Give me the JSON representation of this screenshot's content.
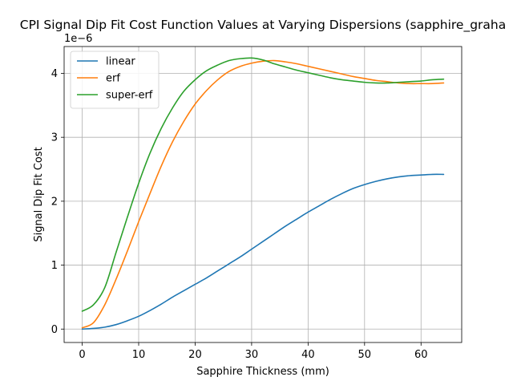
{
  "chart_data": {
    "type": "line",
    "title": "CPI Signal Dip Fit Cost Function Values at Varying Dispersions (sapphire_graha",
    "xlabel": "Sapphire Thickness (mm)",
    "ylabel": "Signal Dip Fit Cost",
    "y_offset_label": "1e−6",
    "y_scale": 1e-06,
    "xlim": [
      -3.2,
      67.2
    ],
    "ylim": [
      -0.21,
      4.42
    ],
    "grid": true,
    "legend_position": "top-left",
    "x_ticks": [
      0,
      10,
      20,
      30,
      40,
      50,
      60
    ],
    "x_tick_labels": [
      "0",
      "10",
      "20",
      "30",
      "40",
      "50",
      "60"
    ],
    "y_ticks": [
      0,
      1,
      2,
      3,
      4
    ],
    "y_tick_labels": [
      "0",
      "1",
      "2",
      "3",
      "4"
    ],
    "series": [
      {
        "name": "linear",
        "color": "#1f77b4",
        "x": [
          0,
          2,
          4,
          6,
          8,
          10,
          12,
          14,
          16,
          18,
          20,
          22,
          24,
          26,
          28,
          30,
          32,
          34,
          36,
          38,
          40,
          42,
          44,
          46,
          48,
          50,
          52,
          54,
          56,
          58,
          60,
          62,
          64
        ],
        "y": [
          0.0,
          0.01,
          0.03,
          0.07,
          0.13,
          0.2,
          0.29,
          0.39,
          0.5,
          0.6,
          0.7,
          0.8,
          0.91,
          1.02,
          1.13,
          1.25,
          1.37,
          1.49,
          1.61,
          1.72,
          1.83,
          1.93,
          2.03,
          2.12,
          2.2,
          2.26,
          2.31,
          2.35,
          2.38,
          2.4,
          2.41,
          2.42,
          2.42
        ]
      },
      {
        "name": "erf",
        "color": "#ff7f0e",
        "x": [
          0,
          2,
          4,
          6,
          8,
          10,
          12,
          14,
          16,
          18,
          20,
          22,
          24,
          26,
          28,
          30,
          32,
          34,
          36,
          38,
          40,
          42,
          44,
          46,
          48,
          50,
          52,
          54,
          56,
          58,
          60,
          62,
          64
        ],
        "y": [
          0.02,
          0.1,
          0.38,
          0.78,
          1.22,
          1.68,
          2.12,
          2.55,
          2.93,
          3.25,
          3.52,
          3.73,
          3.9,
          4.03,
          4.11,
          4.16,
          4.19,
          4.2,
          4.18,
          4.15,
          4.11,
          4.07,
          4.03,
          3.99,
          3.95,
          3.92,
          3.89,
          3.87,
          3.85,
          3.84,
          3.84,
          3.84,
          3.85
        ]
      },
      {
        "name": "super-erf",
        "color": "#2ca02c",
        "x": [
          0,
          2,
          4,
          6,
          8,
          10,
          12,
          14,
          16,
          18,
          20,
          22,
          24,
          26,
          28,
          30,
          32,
          34,
          36,
          38,
          40,
          42,
          44,
          46,
          48,
          50,
          52,
          54,
          56,
          58,
          60,
          62,
          64
        ],
        "y": [
          0.28,
          0.38,
          0.65,
          1.2,
          1.75,
          2.28,
          2.75,
          3.14,
          3.46,
          3.72,
          3.9,
          4.04,
          4.13,
          4.2,
          4.23,
          4.24,
          4.21,
          4.15,
          4.1,
          4.05,
          4.01,
          3.97,
          3.93,
          3.9,
          3.88,
          3.86,
          3.85,
          3.85,
          3.86,
          3.87,
          3.88,
          3.9,
          3.91
        ]
      }
    ]
  }
}
